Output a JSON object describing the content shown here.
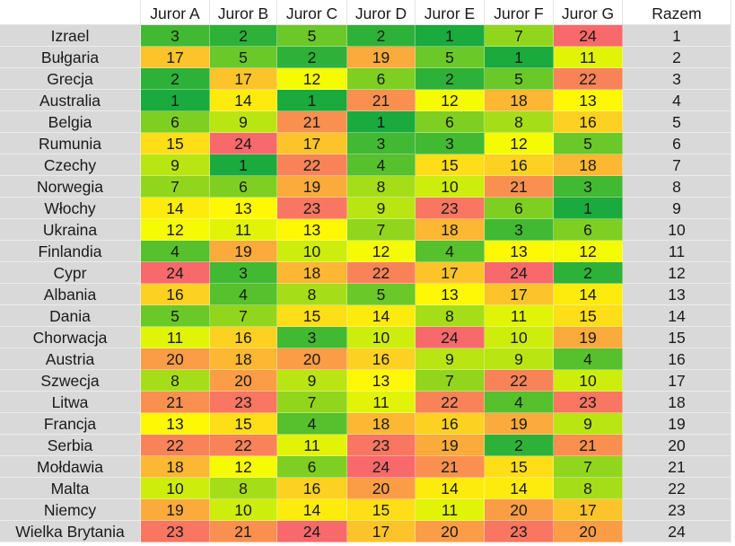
{
  "chart_data": {
    "type": "heatmap",
    "color_scale": {
      "low": "#1aaa3d",
      "mid": "#ffff00",
      "high": "#f8696b"
    },
    "corner_label": "",
    "columns": [
      "Juror A",
      "Juror B",
      "Juror C",
      "Juror D",
      "Juror E",
      "Juror F",
      "Juror G"
    ],
    "total_label": "Razem",
    "rows": [
      {
        "country": "Izrael",
        "scores": [
          3,
          2,
          5,
          2,
          1,
          7,
          24
        ],
        "total": 1
      },
      {
        "country": "Bułgaria",
        "scores": [
          17,
          5,
          2,
          19,
          5,
          1,
          11
        ],
        "total": 2
      },
      {
        "country": "Grecja",
        "scores": [
          2,
          17,
          12,
          6,
          2,
          5,
          22
        ],
        "total": 3
      },
      {
        "country": "Australia",
        "scores": [
          1,
          14,
          1,
          21,
          12,
          18,
          13
        ],
        "total": 4
      },
      {
        "country": "Belgia",
        "scores": [
          6,
          9,
          21,
          1,
          6,
          8,
          16
        ],
        "total": 5
      },
      {
        "country": "Rumunia",
        "scores": [
          15,
          24,
          17,
          3,
          3,
          12,
          5
        ],
        "total": 6
      },
      {
        "country": "Czechy",
        "scores": [
          9,
          1,
          22,
          4,
          15,
          16,
          18
        ],
        "total": 7
      },
      {
        "country": "Norwegia",
        "scores": [
          7,
          6,
          19,
          8,
          10,
          21,
          3
        ],
        "total": 8
      },
      {
        "country": "Włochy",
        "scores": [
          14,
          13,
          23,
          9,
          23,
          6,
          1
        ],
        "total": 9
      },
      {
        "country": "Ukraina",
        "scores": [
          12,
          11,
          13,
          7,
          18,
          3,
          6
        ],
        "total": 10
      },
      {
        "country": "Finlandia",
        "scores": [
          4,
          19,
          10,
          12,
          4,
          13,
          12
        ],
        "total": 11
      },
      {
        "country": "Cypr",
        "scores": [
          24,
          3,
          18,
          22,
          17,
          24,
          2
        ],
        "total": 12
      },
      {
        "country": "Albania",
        "scores": [
          16,
          4,
          8,
          5,
          13,
          17,
          14
        ],
        "total": 13
      },
      {
        "country": "Dania",
        "scores": [
          5,
          7,
          15,
          14,
          8,
          11,
          15
        ],
        "total": 14
      },
      {
        "country": "Chorwacja",
        "scores": [
          11,
          16,
          3,
          10,
          24,
          10,
          19
        ],
        "total": 15
      },
      {
        "country": "Austria",
        "scores": [
          20,
          18,
          20,
          16,
          9,
          9,
          4
        ],
        "total": 16
      },
      {
        "country": "Szwecja",
        "scores": [
          8,
          20,
          9,
          13,
          7,
          22,
          10
        ],
        "total": 17
      },
      {
        "country": "Litwa",
        "scores": [
          21,
          23,
          7,
          11,
          22,
          4,
          23
        ],
        "total": 18
      },
      {
        "country": "Francja",
        "scores": [
          13,
          15,
          4,
          18,
          16,
          19,
          9
        ],
        "total": 19
      },
      {
        "country": "Serbia",
        "scores": [
          22,
          22,
          11,
          23,
          19,
          2,
          21
        ],
        "total": 20
      },
      {
        "country": "Mołdawia",
        "scores": [
          18,
          12,
          6,
          24,
          21,
          15,
          7
        ],
        "total": 21
      },
      {
        "country": "Malta",
        "scores": [
          10,
          8,
          16,
          20,
          14,
          14,
          8
        ],
        "total": 22
      },
      {
        "country": "Niemcy",
        "scores": [
          19,
          10,
          14,
          15,
          11,
          20,
          17
        ],
        "total": 23
      },
      {
        "country": "Wielka Brytania",
        "scores": [
          23,
          21,
          24,
          17,
          20,
          23,
          20
        ],
        "total": 24
      }
    ]
  }
}
